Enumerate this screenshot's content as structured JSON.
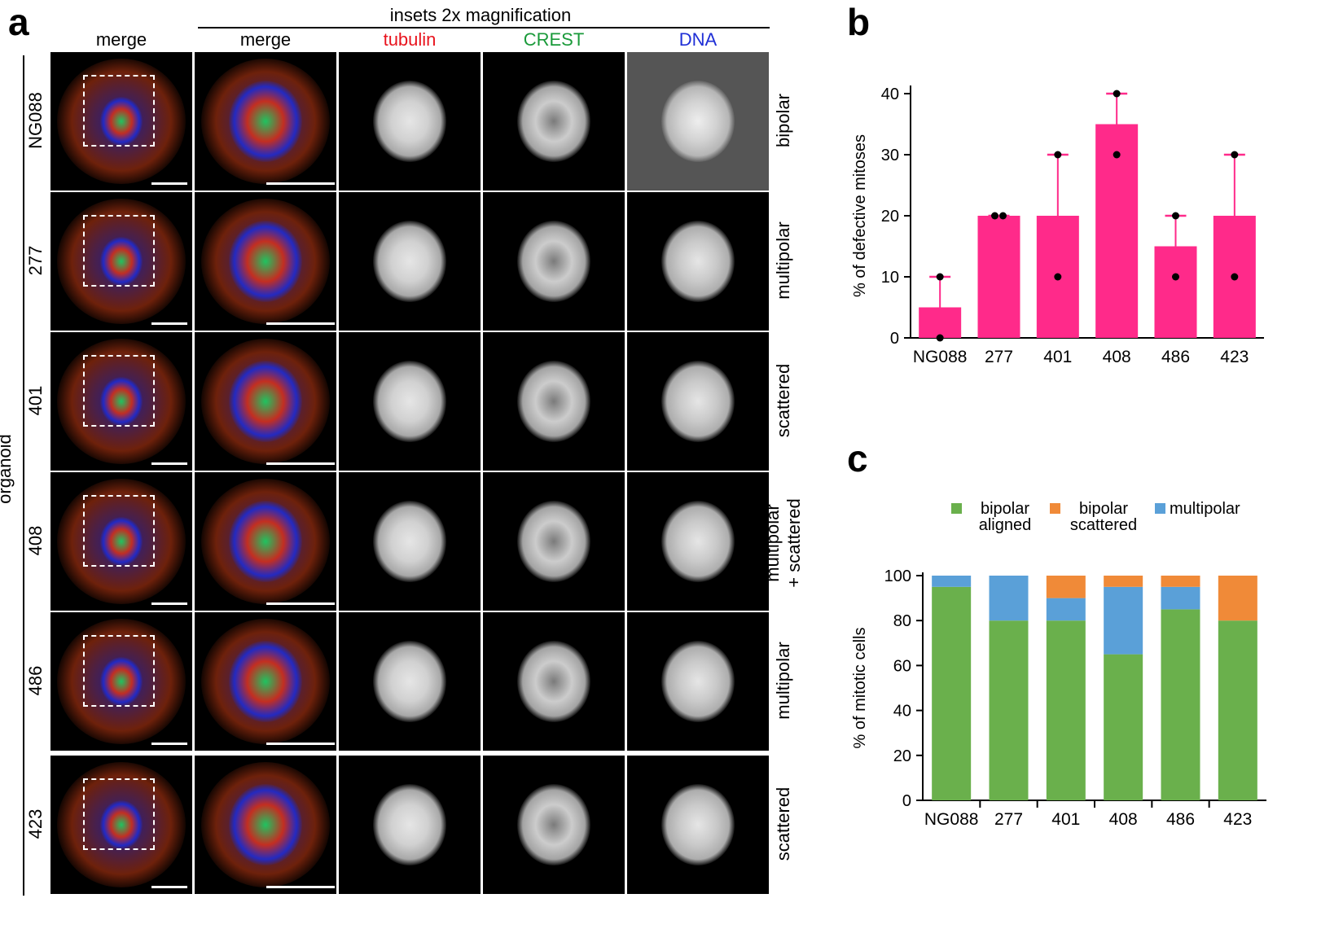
{
  "panels": {
    "a": "a",
    "b": "b",
    "c": "c"
  },
  "panel_a": {
    "inset_header": "insets 2x magnification",
    "columns": [
      {
        "label": "merge",
        "color": "#000000"
      },
      {
        "label": "merge",
        "color": "#000000"
      },
      {
        "label": "tubulin",
        "color": "#e8141e"
      },
      {
        "label": "CREST",
        "color": "#1a9a3a"
      },
      {
        "label": "DNA",
        "color": "#1f2fd6"
      }
    ],
    "group_label": "organoid",
    "rows": [
      {
        "id": "NG088",
        "phenotype": [
          "bipolar"
        ]
      },
      {
        "id": "277",
        "phenotype": [
          "multipolar"
        ]
      },
      {
        "id": "401",
        "phenotype": [
          "scattered"
        ]
      },
      {
        "id": "408",
        "phenotype": [
          "multipolar",
          "+ scattered"
        ]
      },
      {
        "id": "486",
        "phenotype": [
          "multipolar"
        ]
      },
      {
        "id": "423",
        "phenotype": [
          "scattered"
        ]
      }
    ]
  },
  "chart_data": [
    {
      "type": "bar",
      "panel": "b",
      "title": "",
      "xlabel": "",
      "ylabel": "% of defective mitoses",
      "categories": [
        "NG088",
        "277",
        "401",
        "408",
        "486",
        "423"
      ],
      "values": [
        5,
        20,
        20,
        35,
        15,
        20
      ],
      "error_upper": [
        10,
        20,
        30,
        40,
        20,
        30
      ],
      "points": [
        [
          10,
          0
        ],
        [
          20,
          20
        ],
        [
          30,
          10
        ],
        [
          40,
          30
        ],
        [
          20,
          10
        ],
        [
          30,
          10
        ]
      ],
      "ylim": [
        0,
        40
      ],
      "yticks": [
        0,
        10,
        20,
        30,
        40
      ],
      "bar_color": "#ff2a8a",
      "point_color": "#000000"
    },
    {
      "type": "bar",
      "stacked": true,
      "panel": "c",
      "title": "",
      "xlabel": "",
      "ylabel": "% of mitotic cells",
      "categories": [
        "NG088",
        "277",
        "401",
        "408",
        "486",
        "423"
      ],
      "series": [
        {
          "name": "bipolar aligned",
          "legend_lines": [
            "bipolar",
            "aligned"
          ],
          "color": "#6ab04c",
          "values": [
            95,
            80,
            80,
            65,
            85,
            80
          ]
        },
        {
          "name": "multipolar",
          "legend_lines": [
            "multipolar"
          ],
          "color": "#5aa0d8",
          "values": [
            5,
            20,
            10,
            30,
            10,
            0
          ]
        },
        {
          "name": "bipolar scattered",
          "legend_lines": [
            "bipolar",
            "scattered"
          ],
          "color": "#f08a38",
          "values": [
            0,
            0,
            10,
            5,
            5,
            20
          ]
        }
      ],
      "legend_order": [
        0,
        2,
        1
      ],
      "ylim": [
        0,
        100
      ],
      "yticks": [
        0,
        20,
        40,
        60,
        80,
        100
      ]
    }
  ]
}
